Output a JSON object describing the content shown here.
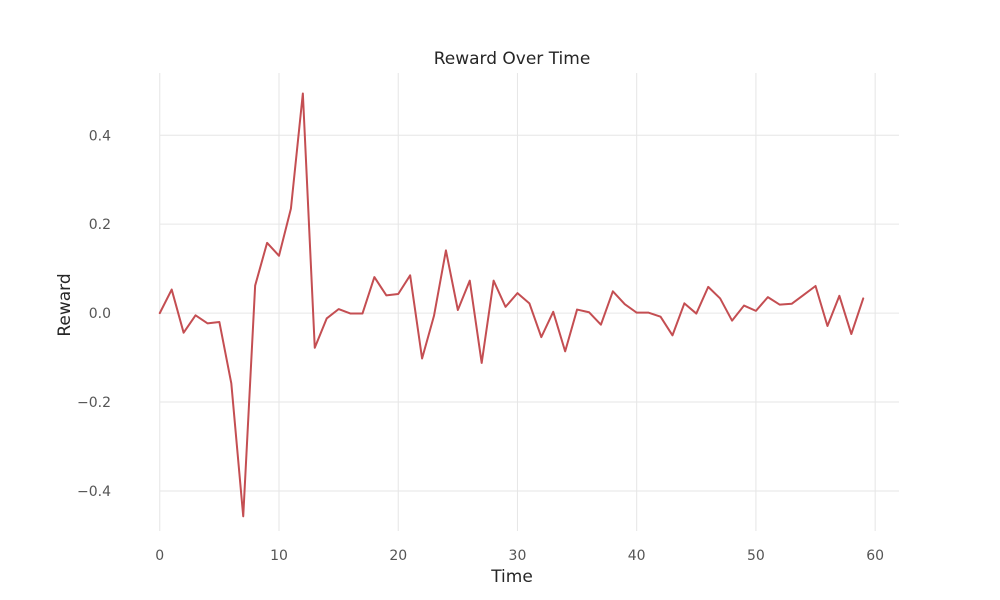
{
  "chart_data": {
    "type": "line",
    "title": "Reward Over Time",
    "xlabel": "Time",
    "ylabel": "Reward",
    "xlim": [
      -3,
      62
    ],
    "ylim": [
      -0.49,
      0.54
    ],
    "xticks": [
      0,
      10,
      20,
      30,
      40,
      50,
      60
    ],
    "xtick_labels": [
      "0",
      "10",
      "20",
      "30",
      "40",
      "50",
      "60"
    ],
    "yticks": [
      -0.4,
      -0.2,
      0.0,
      0.2,
      0.4
    ],
    "ytick_labels": [
      "−0.4",
      "−0.2",
      "0.0",
      "0.2",
      "0.4"
    ],
    "grid": true,
    "series": [
      {
        "color": "#c44e52",
        "x": [
          0,
          1,
          2,
          3,
          4,
          5,
          6,
          7,
          8,
          9,
          10,
          11,
          12,
          13,
          14,
          15,
          16,
          17,
          18,
          19,
          20,
          21,
          22,
          23,
          24,
          25,
          26,
          27,
          28,
          29,
          30,
          31,
          32,
          33,
          34,
          35,
          36,
          37,
          38,
          39,
          40,
          41,
          42,
          43,
          44,
          45,
          46,
          47,
          48,
          49,
          50,
          51,
          52,
          53,
          54,
          55,
          56,
          57,
          58,
          59
        ],
        "values": [
          0.0,
          0.053,
          -0.044,
          -0.005,
          -0.023,
          -0.02,
          -0.158,
          -0.457,
          0.062,
          0.158,
          0.129,
          0.235,
          0.494,
          -0.078,
          -0.012,
          0.009,
          -0.001,
          -0.001,
          0.081,
          0.04,
          0.043,
          0.085,
          -0.102,
          -0.006,
          0.141,
          0.007,
          0.073,
          -0.112,
          0.073,
          0.014,
          0.045,
          0.022,
          -0.054,
          0.003,
          -0.086,
          0.008,
          0.002,
          -0.026,
          0.049,
          0.02,
          0.001,
          0.001,
          -0.008,
          -0.05,
          0.022,
          -0.001,
          0.059,
          0.033,
          -0.017,
          0.017,
          0.005,
          0.036,
          0.019,
          0.021,
          0.041,
          0.061,
          -0.029,
          0.039,
          -0.047,
          0.033
        ]
      }
    ]
  }
}
